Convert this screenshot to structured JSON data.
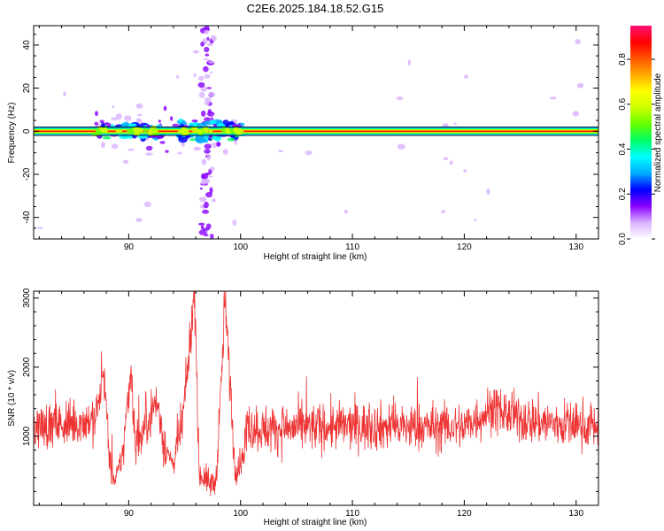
{
  "figure": {
    "title": "C2E6.2025.184.18.52.G15"
  },
  "chart_data": [
    {
      "type": "heatmap",
      "title": "C2E6.2025.184.18.52.G15",
      "xlabel": "Height of straight line (km)",
      "ylabel": "Frequency (Hz)",
      "xlim": [
        81.5,
        132
      ],
      "ylim": [
        -50,
        49
      ],
      "x_ticks": [
        90,
        100,
        110,
        120,
        130
      ],
      "y_ticks": [
        40,
        20,
        0,
        -20,
        -40
      ],
      "colorbar": {
        "label": "Normalized spectral amplitude",
        "range": [
          0,
          0.95
        ],
        "ticks": [
          0.0,
          0.2,
          0.4,
          0.6,
          0.8
        ],
        "colors": [
          "#ffffff",
          "#d9b3ff",
          "#8800ff",
          "#0000ff",
          "#00aaff",
          "#00ffff",
          "#00ff66",
          "#66ff00",
          "#ccff00",
          "#ffff00",
          "#ffaa00",
          "#ff5500",
          "#ff0000",
          "#ff1177"
        ]
      },
      "features": {
        "carrier_frequency": 0,
        "carrier_band_half_width": 1.8,
        "turbulent_zones": [
          {
            "x_start": 87,
            "x_end": 93,
            "f_halfwidth": 5
          },
          {
            "x_start": 94.5,
            "x_end": 100.3,
            "f_halfwidth": 8
          }
        ],
        "vertical_scatter_x": [
          96.5,
          97.5
        ]
      }
    },
    {
      "type": "line",
      "xlabel": "Height of straight line (km)",
      "ylabel": "SNR (10 * v/v)",
      "xlim": [
        81.5,
        132
      ],
      "ylim": [
        0,
        3100
      ],
      "x_ticks": [
        90,
        100,
        110,
        120,
        130
      ],
      "y_ticks": [
        1000,
        2000,
        3000
      ],
      "series_color": "#ee3333",
      "profile": {
        "x": [
          81.5,
          83,
          85,
          87,
          87.8,
          88.3,
          88.8,
          89.5,
          90.2,
          90.6,
          91.2,
          91.8,
          92.5,
          93.3,
          94,
          94.8,
          95.3,
          95.7,
          95.95,
          96.3,
          96.8,
          97.3,
          97.8,
          98.3,
          98.6,
          98.9,
          99.5,
          100.2,
          100.6,
          102,
          105,
          110,
          115,
          120,
          122.5,
          125,
          128,
          130,
          132
        ],
        "mean": [
          1150,
          1150,
          1180,
          1250,
          1900,
          600,
          300,
          800,
          2000,
          900,
          1000,
          1300,
          1500,
          800,
          600,
          1200,
          2000,
          2800,
          2900,
          450,
          400,
          300,
          350,
          1800,
          3000,
          2200,
          500,
          700,
          1150,
          1100,
          1120,
          1150,
          1130,
          1140,
          1400,
          1250,
          1180,
          1170,
          1150
        ],
        "noise_amplitude": 350
      }
    }
  ]
}
